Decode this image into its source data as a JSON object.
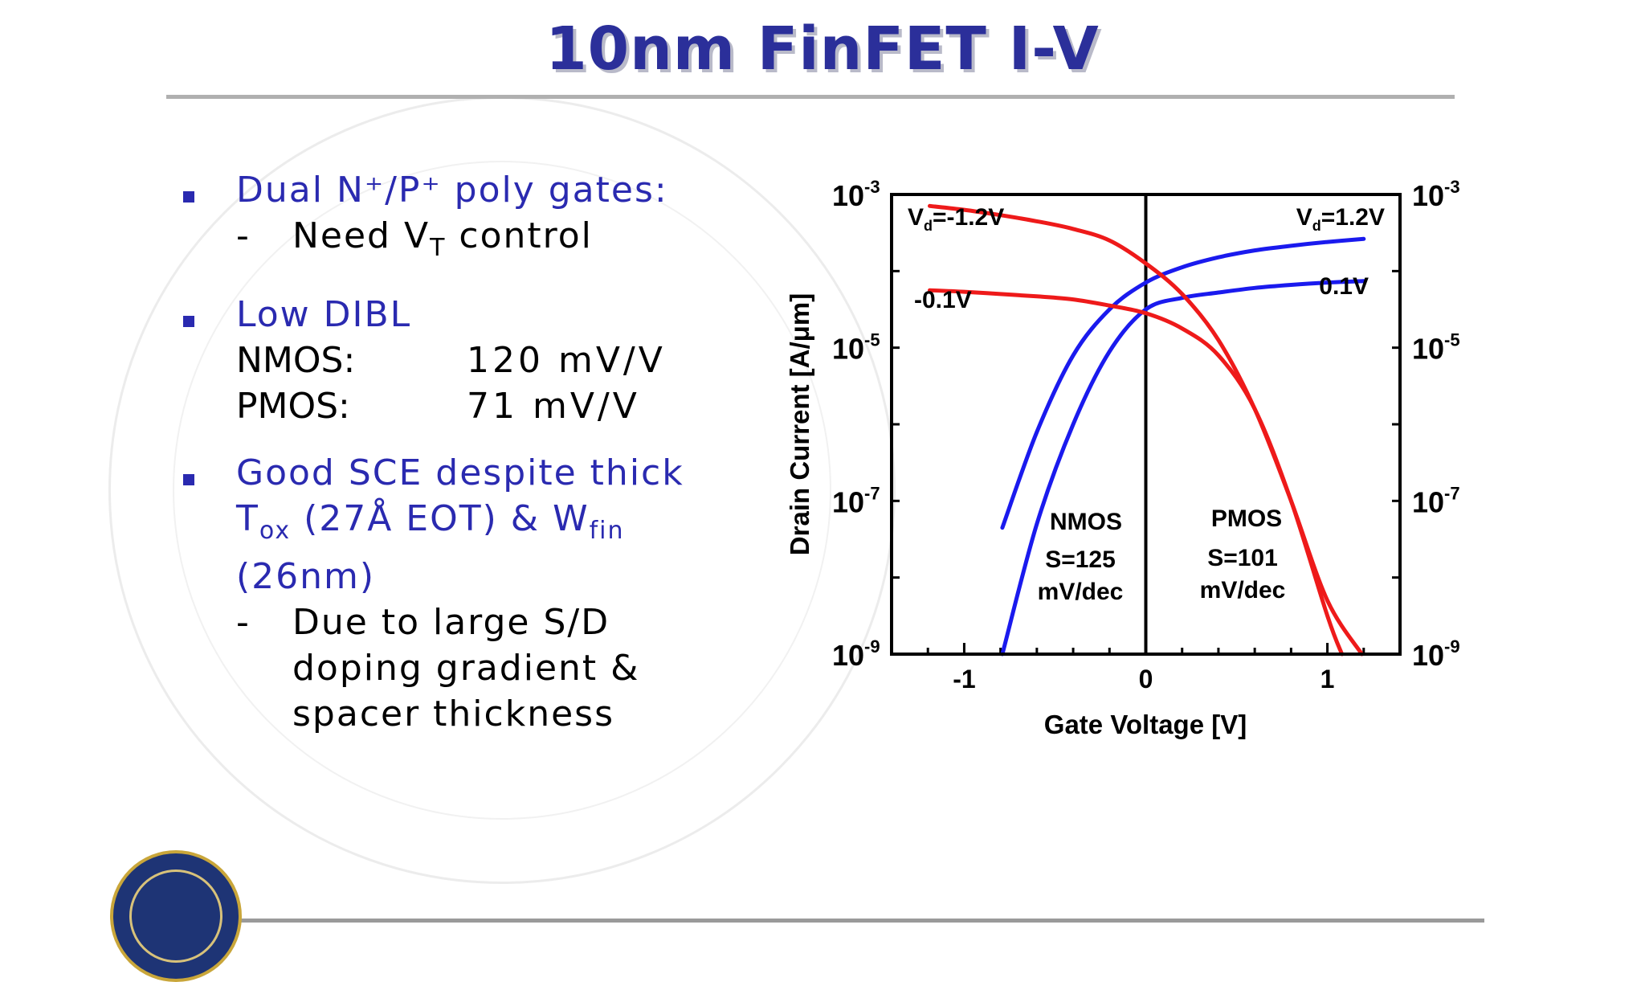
{
  "slide": {
    "title": "10nm FinFET I-V",
    "bullets": [
      {
        "head": "Dual N⁺/P⁺ poly gates:",
        "sub": "Need V",
        "sub_sub": "T",
        "sub_tail": " control"
      },
      {
        "head": "Low DIBL",
        "rows": [
          {
            "label": "NMOS:",
            "value": "120 mV/V"
          },
          {
            "label": "PMOS:",
            "value": "71 mV/V"
          }
        ]
      },
      {
        "head_1": "Good SCE despite thick",
        "head_2a": "T",
        "head_2a_sub": "ox",
        "head_2b": " (27Å EOT) & W",
        "head_2b_sub": "fin",
        "head_3": "(26nm)",
        "sub_lines": [
          "Due to large S/D",
          "doping gradient &",
          "spacer thickness"
        ]
      }
    ]
  },
  "colors": {
    "title": "#2b2f9a",
    "bullet": "#2a2ab0",
    "nmos": "#1a1aee",
    "pmos": "#ee1a1a"
  },
  "chart_data": {
    "type": "line",
    "xlabel": "Gate Voltage [V]",
    "ylabel": "Drain Current [A/μm]",
    "xlim": [
      -1.4,
      1.4
    ],
    "ylim_exp": [
      -9,
      -3
    ],
    "y_scale": "log",
    "x_ticks": [
      {
        "value": -1,
        "label": "-1"
      },
      {
        "value": 0,
        "label": "0"
      },
      {
        "value": 1,
        "label": "1"
      }
    ],
    "y_ticks": [
      {
        "exp": -3,
        "base": "10",
        "sup": "-3"
      },
      {
        "exp": -5,
        "base": "10",
        "sup": "-5"
      },
      {
        "exp": -7,
        "base": "10",
        "sup": "-7"
      },
      {
        "exp": -9,
        "base": "10",
        "sup": "-9"
      }
    ],
    "series": [
      {
        "color": "#1a1aee",
        "x": [
          -0.79,
          -0.6,
          -0.4,
          -0.2,
          0,
          0.2,
          0.4,
          0.6,
          0.8,
          1.0,
          1.2
        ],
        "log_y": [
          -7.35,
          -6.1,
          -5.1,
          -4.5,
          -4.15,
          -3.95,
          -3.82,
          -3.73,
          -3.67,
          -3.62,
          -3.58
        ]
      },
      {
        "color": "#1a1aee",
        "x": [
          -0.79,
          -0.6,
          -0.4,
          -0.2,
          0,
          0.2,
          0.4,
          0.6,
          0.8,
          1.0,
          1.2
        ],
        "log_y": [
          -9.0,
          -7.3,
          -6.0,
          -5.05,
          -4.5,
          -4.35,
          -4.28,
          -4.22,
          -4.18,
          -4.15,
          -4.13
        ]
      },
      {
        "color": "#ee1a1a",
        "x": [
          -1.19,
          -1.0,
          -0.8,
          -0.6,
          -0.4,
          -0.2,
          0,
          0.2,
          0.4,
          0.6,
          0.8,
          1.0,
          1.19
        ],
        "log_y": [
          -3.15,
          -3.2,
          -3.27,
          -3.35,
          -3.45,
          -3.6,
          -3.9,
          -4.3,
          -4.9,
          -5.8,
          -7.0,
          -8.3,
          -9.0
        ]
      },
      {
        "color": "#ee1a1a",
        "x": [
          -1.19,
          -1.0,
          -0.8,
          -0.6,
          -0.4,
          -0.2,
          0,
          0.2,
          0.4,
          0.6,
          0.8,
          1.0,
          1.08
        ],
        "log_y": [
          -4.25,
          -4.27,
          -4.3,
          -4.33,
          -4.37,
          -4.45,
          -4.55,
          -4.75,
          -5.1,
          -5.8,
          -7.0,
          -8.5,
          -9.0
        ]
      }
    ],
    "annotations": {
      "vd_neg_high": {
        "base": "V",
        "sub": "d",
        "tail": "=-1.2V"
      },
      "vd_pos_high": {
        "base": "V",
        "sub": "d",
        "tail": "=1.2V"
      },
      "vd_neg_low": "-0.1V",
      "vd_pos_low": "0.1V",
      "nmos": [
        "NMOS",
        "S=125",
        "mV/dec"
      ],
      "pmos": [
        "PMOS",
        "S=101",
        "mV/dec"
      ]
    }
  }
}
